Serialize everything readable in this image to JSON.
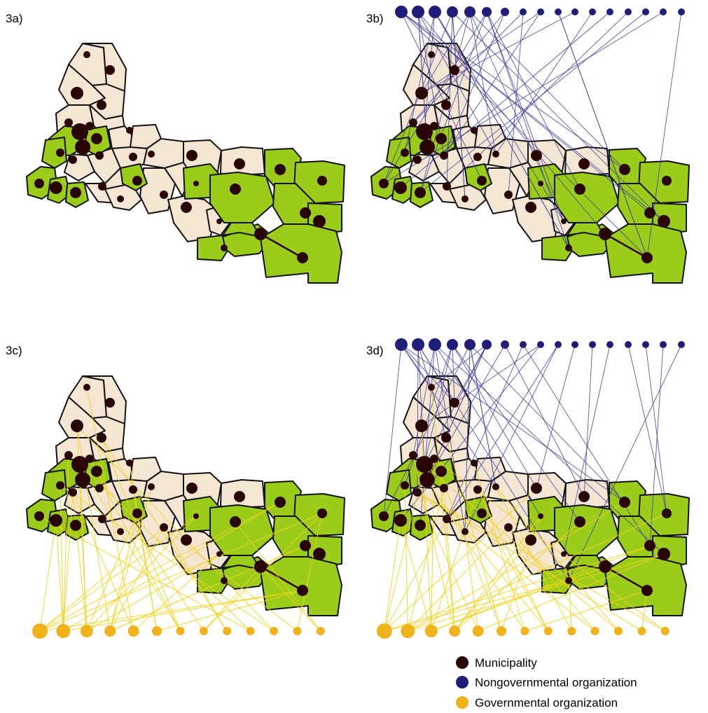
{
  "colors": {
    "municipality": "#2a0505",
    "ngo": "#1f1f7a",
    "gov": "#f0b21a",
    "gov_edge": "#f0d21a",
    "ngo_edge": "#3a3a9a",
    "region_green": "#9ccc1a",
    "region_cream": "#f5e6d3",
    "border": "#111111"
  },
  "panels": [
    {
      "id": "3a",
      "label": "3a)",
      "show_ngo": false,
      "show_gov": false
    },
    {
      "id": "3b",
      "label": "3b)",
      "show_ngo": true,
      "show_gov": false
    },
    {
      "id": "3c",
      "label": "3c)",
      "show_ngo": false,
      "show_gov": true
    },
    {
      "id": "3d",
      "label": "3d)",
      "show_ngo": true,
      "show_gov": true
    }
  ],
  "ngo_node_count": 17,
  "gov_node_count": 13,
  "legend": {
    "municipality": "Municipality",
    "ngo": "Nongovernmental organization",
    "gov": "Governmental organization"
  }
}
